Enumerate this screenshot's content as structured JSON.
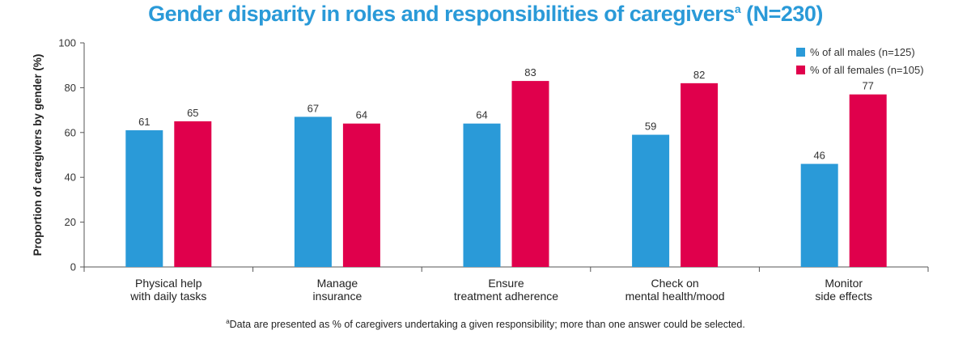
{
  "title": {
    "main": "Gender disparity in roles and responsibilities of caregivers",
    "superscript": "a",
    "suffix": " (N=230)"
  },
  "footnote": {
    "marker": "a",
    "text": "Data are presented as % of caregivers undertaking a given responsibility; more than one answer could be selected."
  },
  "colors": {
    "males": "#2a9ad8",
    "females": "#e0004c"
  },
  "chart_data": {
    "type": "bar",
    "title": "Gender disparity in roles and responsibilities of caregivers (N=230)",
    "ylabel": "Proportion of caregivers by gender (%)",
    "xlabel": "",
    "ylim": [
      0,
      100
    ],
    "yticks": [
      "0",
      "20",
      "40",
      "60",
      "80",
      "100"
    ],
    "grid": false,
    "legend_position": "top-right",
    "categories": [
      [
        "Physical help",
        "with daily tasks"
      ],
      [
        "Manage",
        "insurance"
      ],
      [
        "Ensure",
        "treatment adherence"
      ],
      [
        "Check on",
        "mental health/mood"
      ],
      [
        "Monitor",
        "side effects"
      ]
    ],
    "series": [
      {
        "name": "% of all males (n=125)",
        "values": [
          61,
          67,
          64,
          59,
          46
        ]
      },
      {
        "name": "% of all females (n=105)",
        "values": [
          65,
          64,
          83,
          82,
          77
        ]
      }
    ]
  }
}
